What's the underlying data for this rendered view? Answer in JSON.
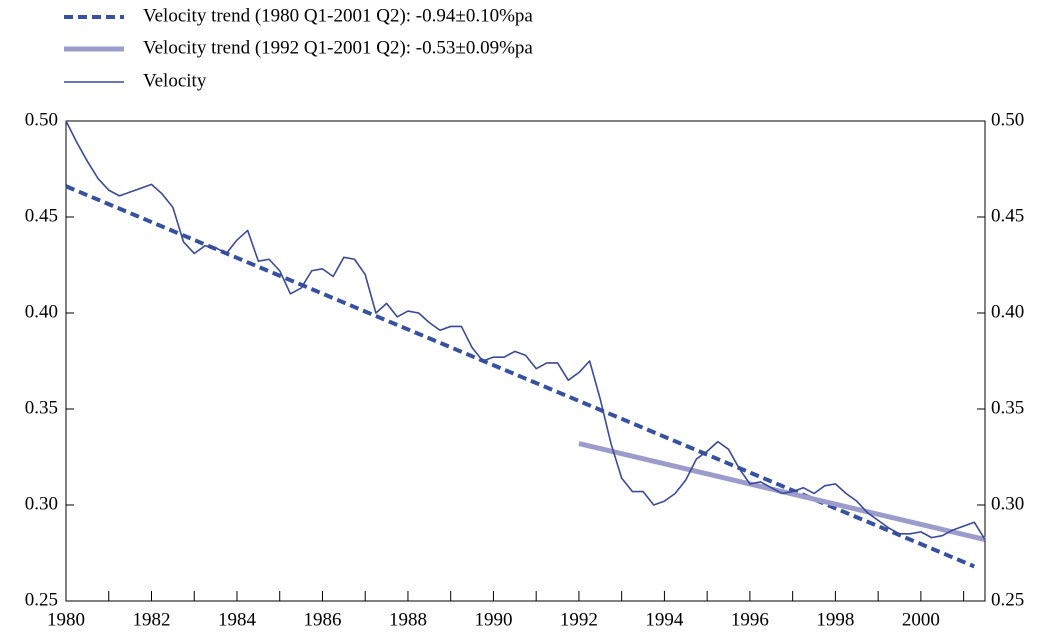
{
  "chart_data": {
    "type": "line",
    "series": [
      {
        "name": "Velocity trend (1980 Q1-2001 Q2): -0.94±0.10%pa",
        "color": "#3551a0",
        "style": "dashed",
        "width": 4,
        "x": [
          1980,
          2001.25
        ],
        "values": [
          0.466,
          0.268
        ]
      },
      {
        "name": "Velocity trend (1992 Q1-2001 Q2): -0.53±0.09%pa",
        "color": "#9c9ccc",
        "style": "solid",
        "width": 5,
        "x": [
          1992,
          2001.5
        ],
        "values": [
          0.332,
          0.282
        ]
      },
      {
        "name": "Velocity",
        "color": "#3a4a9a",
        "style": "solid",
        "width": 1.6,
        "x": [
          1980,
          1980.25,
          1980.5,
          1980.75,
          1981,
          1981.25,
          1981.5,
          1981.75,
          1982,
          1982.25,
          1982.5,
          1982.75,
          1983,
          1983.25,
          1983.5,
          1983.75,
          1984,
          1984.25,
          1984.5,
          1984.75,
          1985,
          1985.25,
          1985.5,
          1985.75,
          1986,
          1986.25,
          1986.5,
          1986.75,
          1987,
          1987.25,
          1987.5,
          1987.75,
          1988,
          1988.25,
          1988.5,
          1988.75,
          1989,
          1989.25,
          1989.5,
          1989.75,
          1990,
          1990.25,
          1990.5,
          1990.75,
          1991,
          1991.25,
          1991.5,
          1991.75,
          1992,
          1992.25,
          1992.5,
          1992.75,
          1993,
          1993.25,
          1993.5,
          1993.75,
          1994,
          1994.25,
          1994.5,
          1994.75,
          1995,
          1995.25,
          1995.5,
          1995.75,
          1996,
          1996.25,
          1996.5,
          1996.75,
          1997,
          1997.25,
          1997.5,
          1997.75,
          1998,
          1998.25,
          1998.5,
          1998.75,
          1999,
          1999.25,
          1999.5,
          1999.75,
          2000,
          2000.25,
          2000.5,
          2000.75,
          2001,
          2001.25,
          2001.5
        ],
        "values": [
          0.5,
          0.489,
          0.479,
          0.47,
          0.464,
          0.461,
          0.463,
          0.465,
          0.467,
          0.462,
          0.455,
          0.437,
          0.431,
          0.435,
          0.434,
          0.431,
          0.438,
          0.443,
          0.427,
          0.428,
          0.422,
          0.41,
          0.413,
          0.422,
          0.423,
          0.419,
          0.429,
          0.428,
          0.42,
          0.4,
          0.405,
          0.398,
          0.401,
          0.4,
          0.395,
          0.391,
          0.393,
          0.393,
          0.382,
          0.375,
          0.377,
          0.377,
          0.38,
          0.378,
          0.371,
          0.374,
          0.374,
          0.365,
          0.369,
          0.375,
          0.355,
          0.332,
          0.314,
          0.307,
          0.307,
          0.3,
          0.302,
          0.306,
          0.313,
          0.324,
          0.328,
          0.333,
          0.329,
          0.319,
          0.311,
          0.312,
          0.309,
          0.306,
          0.307,
          0.309,
          0.306,
          0.31,
          0.311,
          0.306,
          0.302,
          0.296,
          0.292,
          0.288,
          0.285,
          0.285,
          0.286,
          0.283,
          0.284,
          0.287,
          0.289,
          0.291,
          0.282
        ]
      }
    ],
    "xlim": [
      1980,
      2001.5
    ],
    "xticks": [
      1980,
      1982,
      1984,
      1986,
      1988,
      1990,
      1992,
      1994,
      1996,
      1998,
      2000
    ],
    "xminorticks": [
      1981,
      1983,
      1985,
      1987,
      1989,
      1991,
      1993,
      1995,
      1997,
      1999,
      2001
    ],
    "ylim": [
      0.25,
      0.5
    ],
    "yticks": [
      0.25,
      {
        "value": 0.3,
        "label": "0.30"
      },
      0.35,
      {
        "value": 0.4,
        "label": "0.40"
      },
      0.45,
      {
        "value": 0.5,
        "label": "0.50"
      }
    ],
    "y2lim": [
      0.25,
      0.5
    ],
    "y2ticks": [
      0.25,
      {
        "value": 0.3,
        "label": "0.30"
      },
      0.35,
      {
        "value": 0.4,
        "label": "0.40"
      },
      0.45,
      {
        "value": 0.5,
        "label": "0.50"
      }
    ],
    "grid": false
  }
}
